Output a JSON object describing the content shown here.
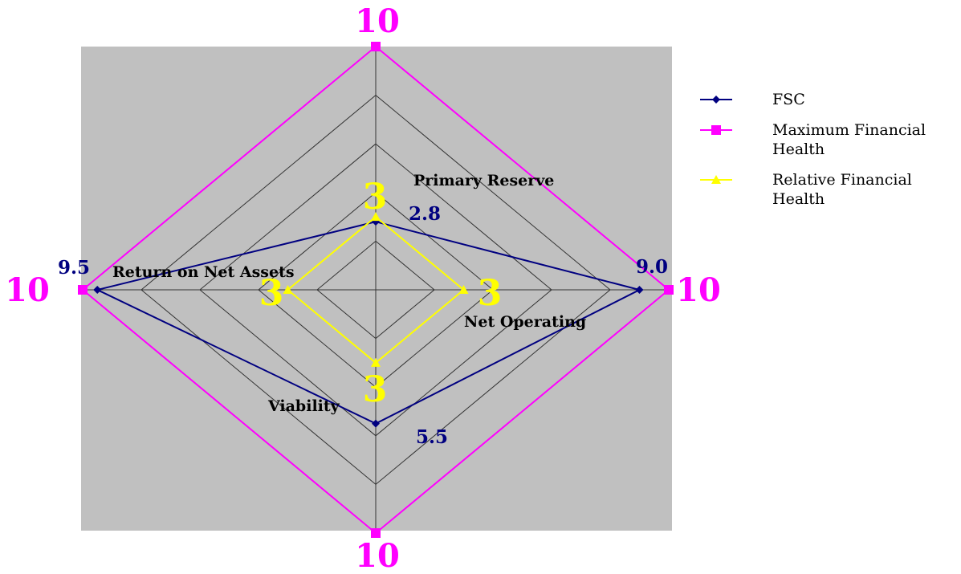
{
  "chart_data": {
    "type": "radar",
    "axes": [
      "Primary Reserve",
      "Net Operating",
      "Viability",
      "Return on Net Assets"
    ],
    "rmax": 10,
    "rings": 5,
    "series": [
      {
        "name": "FSC",
        "values": [
          2.8,
          9.0,
          5.5,
          9.5
        ],
        "labels": [
          "2.8",
          "9.0",
          "5.5",
          "9.5"
        ],
        "color": "#000080",
        "marker": "diamond"
      },
      {
        "name": "Maximum Financial Health",
        "values": [
          10,
          10,
          10,
          10
        ],
        "labels": [
          "10",
          "10",
          "10",
          "10"
        ],
        "color": "#FF00FF",
        "marker": "square"
      },
      {
        "name": "Relative Financial Health",
        "values": [
          3,
          3,
          3,
          3
        ],
        "labels": [
          "3",
          "3",
          "3",
          "3"
        ],
        "color": "#FFFF00",
        "marker": "triangle"
      }
    ],
    "legend_position": "right",
    "background_color": "#C0C0C0",
    "grid": true
  }
}
